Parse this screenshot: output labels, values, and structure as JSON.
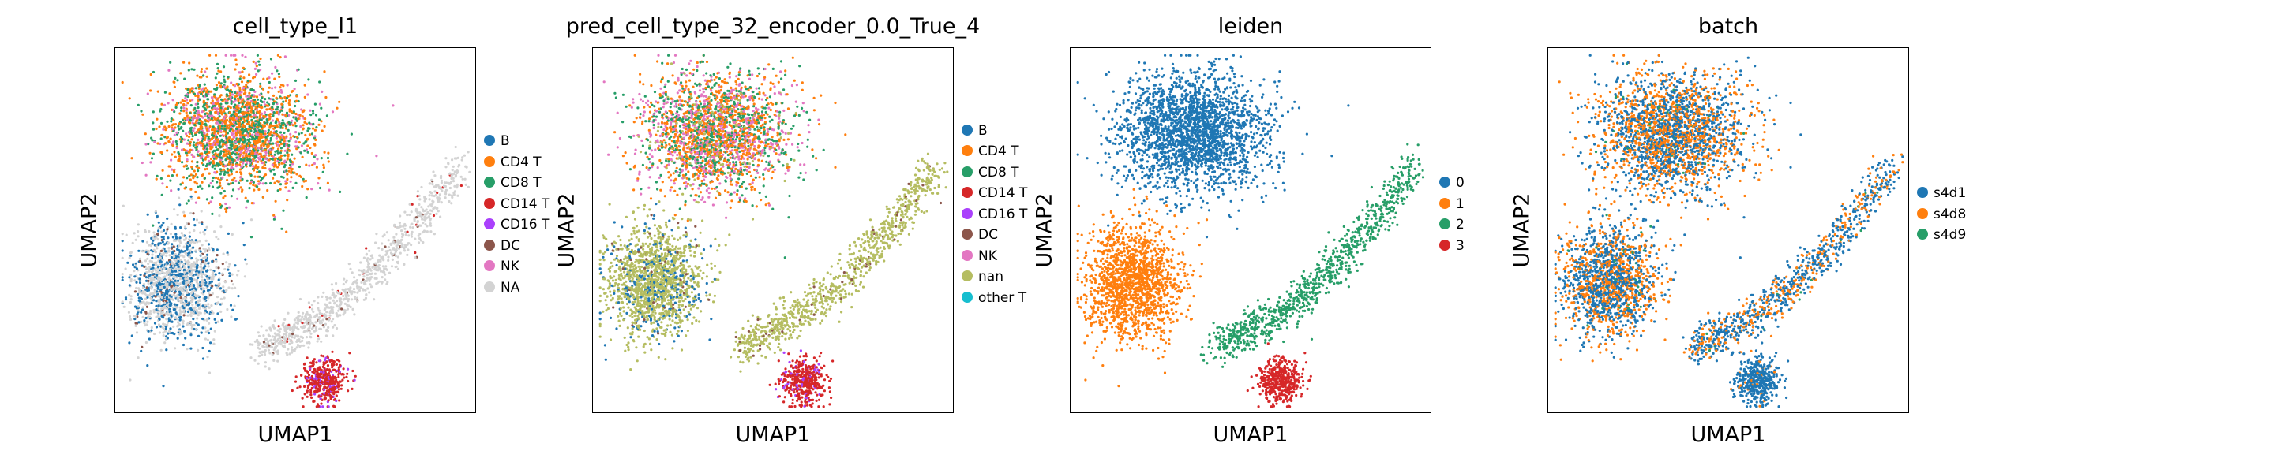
{
  "chart_data": [
    {
      "type": "scatter",
      "title": "cell_type_l1",
      "xlabel": "UMAP1",
      "ylabel": "UMAP2",
      "legend_position": "right",
      "grid": false,
      "legend": [
        {
          "label": "B",
          "color": "#1f77b4"
        },
        {
          "label": "CD4 T",
          "color": "#ff7f0e"
        },
        {
          "label": "CD8 T",
          "color": "#279e68"
        },
        {
          "label": "CD14 T",
          "color": "#d62728"
        },
        {
          "label": "CD16 T",
          "color": "#aa40fc"
        },
        {
          "label": "DC",
          "color": "#8c564b"
        },
        {
          "label": "NK",
          "color": "#e377c2"
        },
        {
          "label": "NA",
          "color": "#d3d3d3"
        }
      ],
      "clusters": [
        {
          "region": "top",
          "composition": {
            "CD4 T": 0.45,
            "CD8 T": 0.35,
            "NK": 0.2
          }
        },
        {
          "region": "left",
          "composition": {
            "NA": 0.55,
            "B": 0.4,
            "DC": 0.05
          }
        },
        {
          "region": "right",
          "composition": {
            "NA": 0.93,
            "DC": 0.04,
            "CD14 T": 0.03
          }
        },
        {
          "region": "bottom",
          "composition": {
            "CD14 T": 0.85,
            "CD16 T": 0.15
          }
        }
      ]
    },
    {
      "type": "scatter",
      "title": "pred_cell_type_32_encoder_0.0_True_4",
      "xlabel": "UMAP1",
      "ylabel": "UMAP2",
      "legend_position": "right",
      "grid": false,
      "legend": [
        {
          "label": "B",
          "color": "#1f77b4"
        },
        {
          "label": "CD4 T",
          "color": "#ff7f0e"
        },
        {
          "label": "CD8 T",
          "color": "#279e68"
        },
        {
          "label": "CD14 T",
          "color": "#d62728"
        },
        {
          "label": "CD16 T",
          "color": "#aa40fc"
        },
        {
          "label": "DC",
          "color": "#8c564b"
        },
        {
          "label": "NK",
          "color": "#e377c2"
        },
        {
          "label": "nan",
          "color": "#b5bd61"
        },
        {
          "label": "other T",
          "color": "#17becf"
        }
      ],
      "clusters": [
        {
          "region": "top",
          "composition": {
            "CD4 T": 0.35,
            "CD8 T": 0.3,
            "NK": 0.3,
            "nan": 0.05
          }
        },
        {
          "region": "left",
          "composition": {
            "nan": 0.82,
            "B": 0.15,
            "DC": 0.03
          }
        },
        {
          "region": "right",
          "composition": {
            "nan": 0.95,
            "DC": 0.05
          }
        },
        {
          "region": "bottom",
          "composition": {
            "CD14 T": 0.85,
            "CD16 T": 0.15
          }
        }
      ]
    },
    {
      "type": "scatter",
      "title": "leiden",
      "xlabel": "UMAP1",
      "ylabel": "UMAP2",
      "legend_position": "right",
      "grid": false,
      "legend": [
        {
          "label": "0",
          "color": "#1f77b4"
        },
        {
          "label": "1",
          "color": "#ff7f0e"
        },
        {
          "label": "2",
          "color": "#279e68"
        },
        {
          "label": "3",
          "color": "#d62728"
        }
      ],
      "clusters": [
        {
          "region": "top",
          "composition": {
            "0": 1.0
          }
        },
        {
          "region": "left",
          "composition": {
            "1": 1.0
          }
        },
        {
          "region": "right",
          "composition": {
            "2": 1.0
          }
        },
        {
          "region": "bottom",
          "composition": {
            "3": 1.0
          }
        }
      ]
    },
    {
      "type": "scatter",
      "title": "batch",
      "xlabel": "UMAP1",
      "ylabel": "UMAP2",
      "legend_position": "right",
      "grid": false,
      "legend": [
        {
          "label": "s4d1",
          "color": "#1f77b4"
        },
        {
          "label": "s4d8",
          "color": "#ff7f0e"
        },
        {
          "label": "s4d9",
          "color": "#279e68"
        }
      ],
      "clusters": [
        {
          "region": "top",
          "composition": {
            "s4d1": 0.5,
            "s4d8": 0.48,
            "s4d9": 0.02
          }
        },
        {
          "region": "left",
          "composition": {
            "s4d1": 0.55,
            "s4d8": 0.43,
            "s4d9": 0.02
          }
        },
        {
          "region": "right",
          "composition": {
            "s4d1": 0.65,
            "s4d8": 0.33,
            "s4d9": 0.02
          }
        },
        {
          "region": "bottom",
          "composition": {
            "s4d1": 0.95,
            "s4d8": 0.05
          }
        }
      ]
    }
  ]
}
